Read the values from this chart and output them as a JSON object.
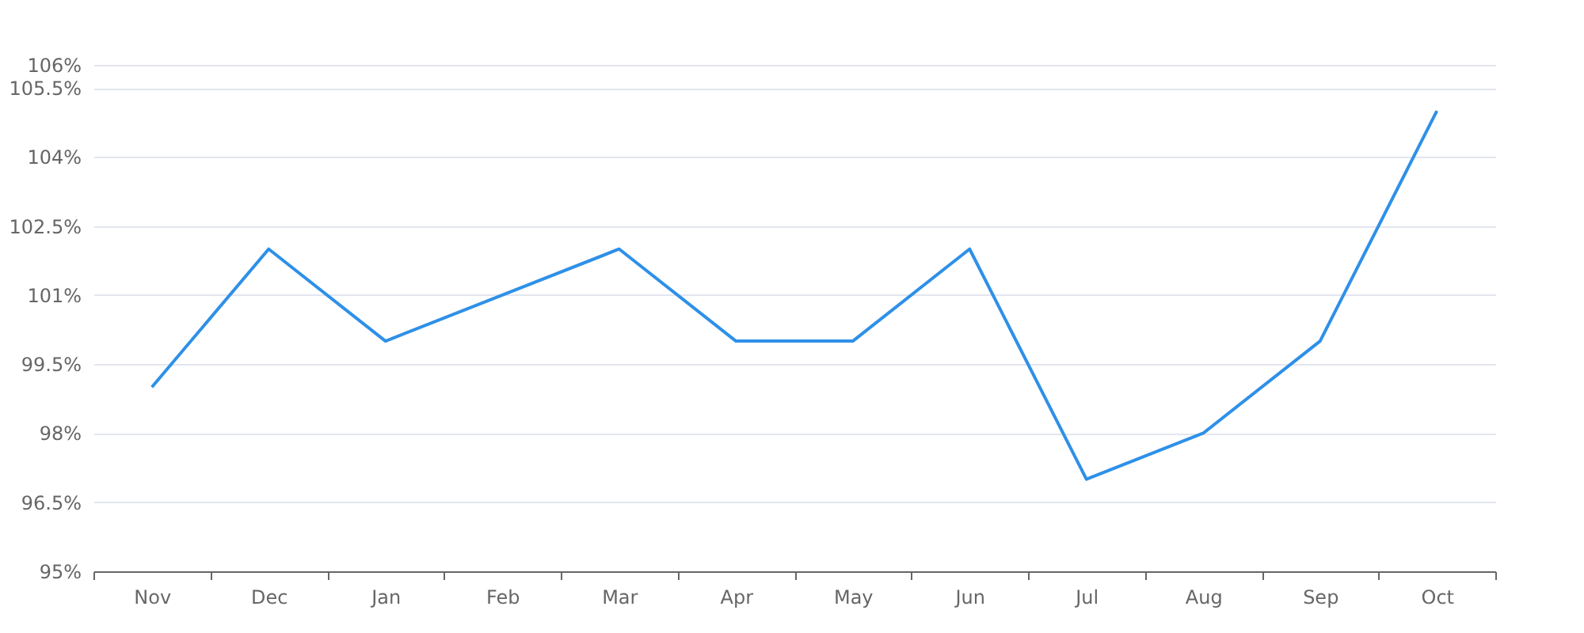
{
  "chart_data": {
    "type": "line",
    "categories": [
      "Nov",
      "Dec",
      "Jan",
      "Feb",
      "Mar",
      "Apr",
      "May",
      "Jun",
      "Jul",
      "Aug",
      "Sep",
      "Oct"
    ],
    "series": [
      {
        "color": "#2e90e8",
        "values": [
          99,
          102,
          100,
          101,
          102,
          100,
          100,
          102,
          97,
          98,
          100,
          105
        ]
      }
    ],
    "ylim": [
      95,
      106
    ],
    "yticks": [
      {
        "value": 95,
        "label": "95%"
      },
      {
        "value": 96.5,
        "label": "96.5%"
      },
      {
        "value": 98,
        "label": "98%"
      },
      {
        "value": 99.5,
        "label": "99.5%"
      },
      {
        "value": 101,
        "label": "101%"
      },
      {
        "value": 102.5,
        "label": "102.5%"
      },
      {
        "value": 104,
        "label": "104%"
      },
      {
        "value": 105.5,
        "label": "105.5%"
      },
      {
        "value": 106,
        "label": "106%"
      }
    ],
    "grid": "y",
    "marker": "none",
    "line_style": "solid"
  }
}
